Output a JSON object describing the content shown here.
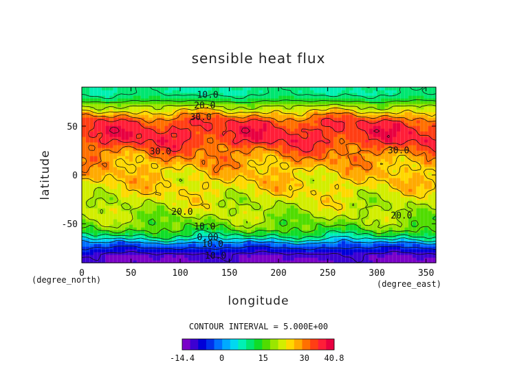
{
  "chart_data": {
    "type": "heatmap",
    "title": "sensible heat flux",
    "xlabel": "longitude",
    "ylabel": "latitude",
    "x_unit": "(degree_east)",
    "y_unit": "(degree_north)",
    "xlim": [
      0,
      360
    ],
    "ylim": [
      -90,
      90
    ],
    "x_ticks": [
      0,
      50,
      100,
      150,
      200,
      250,
      300,
      350
    ],
    "y_ticks": [
      50,
      0,
      -50
    ],
    "contour_interval_text": "CONTOUR INTERVAL = 5.000E+00",
    "colorbar_ticks": [
      "-14.4",
      "0",
      "15",
      "30",
      "40.8"
    ],
    "colorbar_range": [
      -14.4,
      40.8
    ],
    "colorbar_colors": [
      "#7a00c8",
      "#3c00d2",
      "#0000d8",
      "#0030ea",
      "#0070ff",
      "#00aaff",
      "#00d8f0",
      "#00f0b4",
      "#00e670",
      "#10dc28",
      "#50dc00",
      "#9ae600",
      "#d2ee00",
      "#ffd800",
      "#ffaa00",
      "#ff7000",
      "#ff3e14",
      "#ff1e38",
      "#e80040"
    ],
    "zonal_profile": {
      "lat": [
        -90,
        -82,
        -76,
        -70,
        -66,
        -62,
        -55,
        -45,
        -35,
        -25,
        -15,
        -5,
        5,
        15,
        25,
        35,
        45,
        55,
        62,
        68,
        73,
        78,
        84,
        90
      ],
      "value": [
        -12,
        -11,
        -6,
        -1,
        5,
        10,
        16,
        19,
        21,
        22,
        24,
        25,
        26,
        28,
        31,
        35,
        36,
        34,
        28,
        22,
        18,
        12,
        9,
        9
      ]
    },
    "contour_labels": [
      {
        "text": "10.0",
        "lon": 128,
        "lat": 82
      },
      {
        "text": "20.0",
        "lon": 125,
        "lat": 71
      },
      {
        "text": "30.0",
        "lon": 121,
        "lat": 59
      },
      {
        "text": "30.0",
        "lon": 80,
        "lat": 24
      },
      {
        "text": "30.0",
        "lon": 322,
        "lat": 25
      },
      {
        "text": "20.0",
        "lon": 102,
        "lat": -38
      },
      {
        "text": "20.0",
        "lon": 325,
        "lat": -42
      },
      {
        "text": "10.0",
        "lon": 125,
        "lat": -53
      },
      {
        "text": "0.00",
        "lon": 128,
        "lat": -64
      },
      {
        "text": "10.0",
        "lon": 133,
        "lat": -71
      },
      {
        "text": "10.0",
        "lon": 136,
        "lat": -83
      }
    ]
  }
}
